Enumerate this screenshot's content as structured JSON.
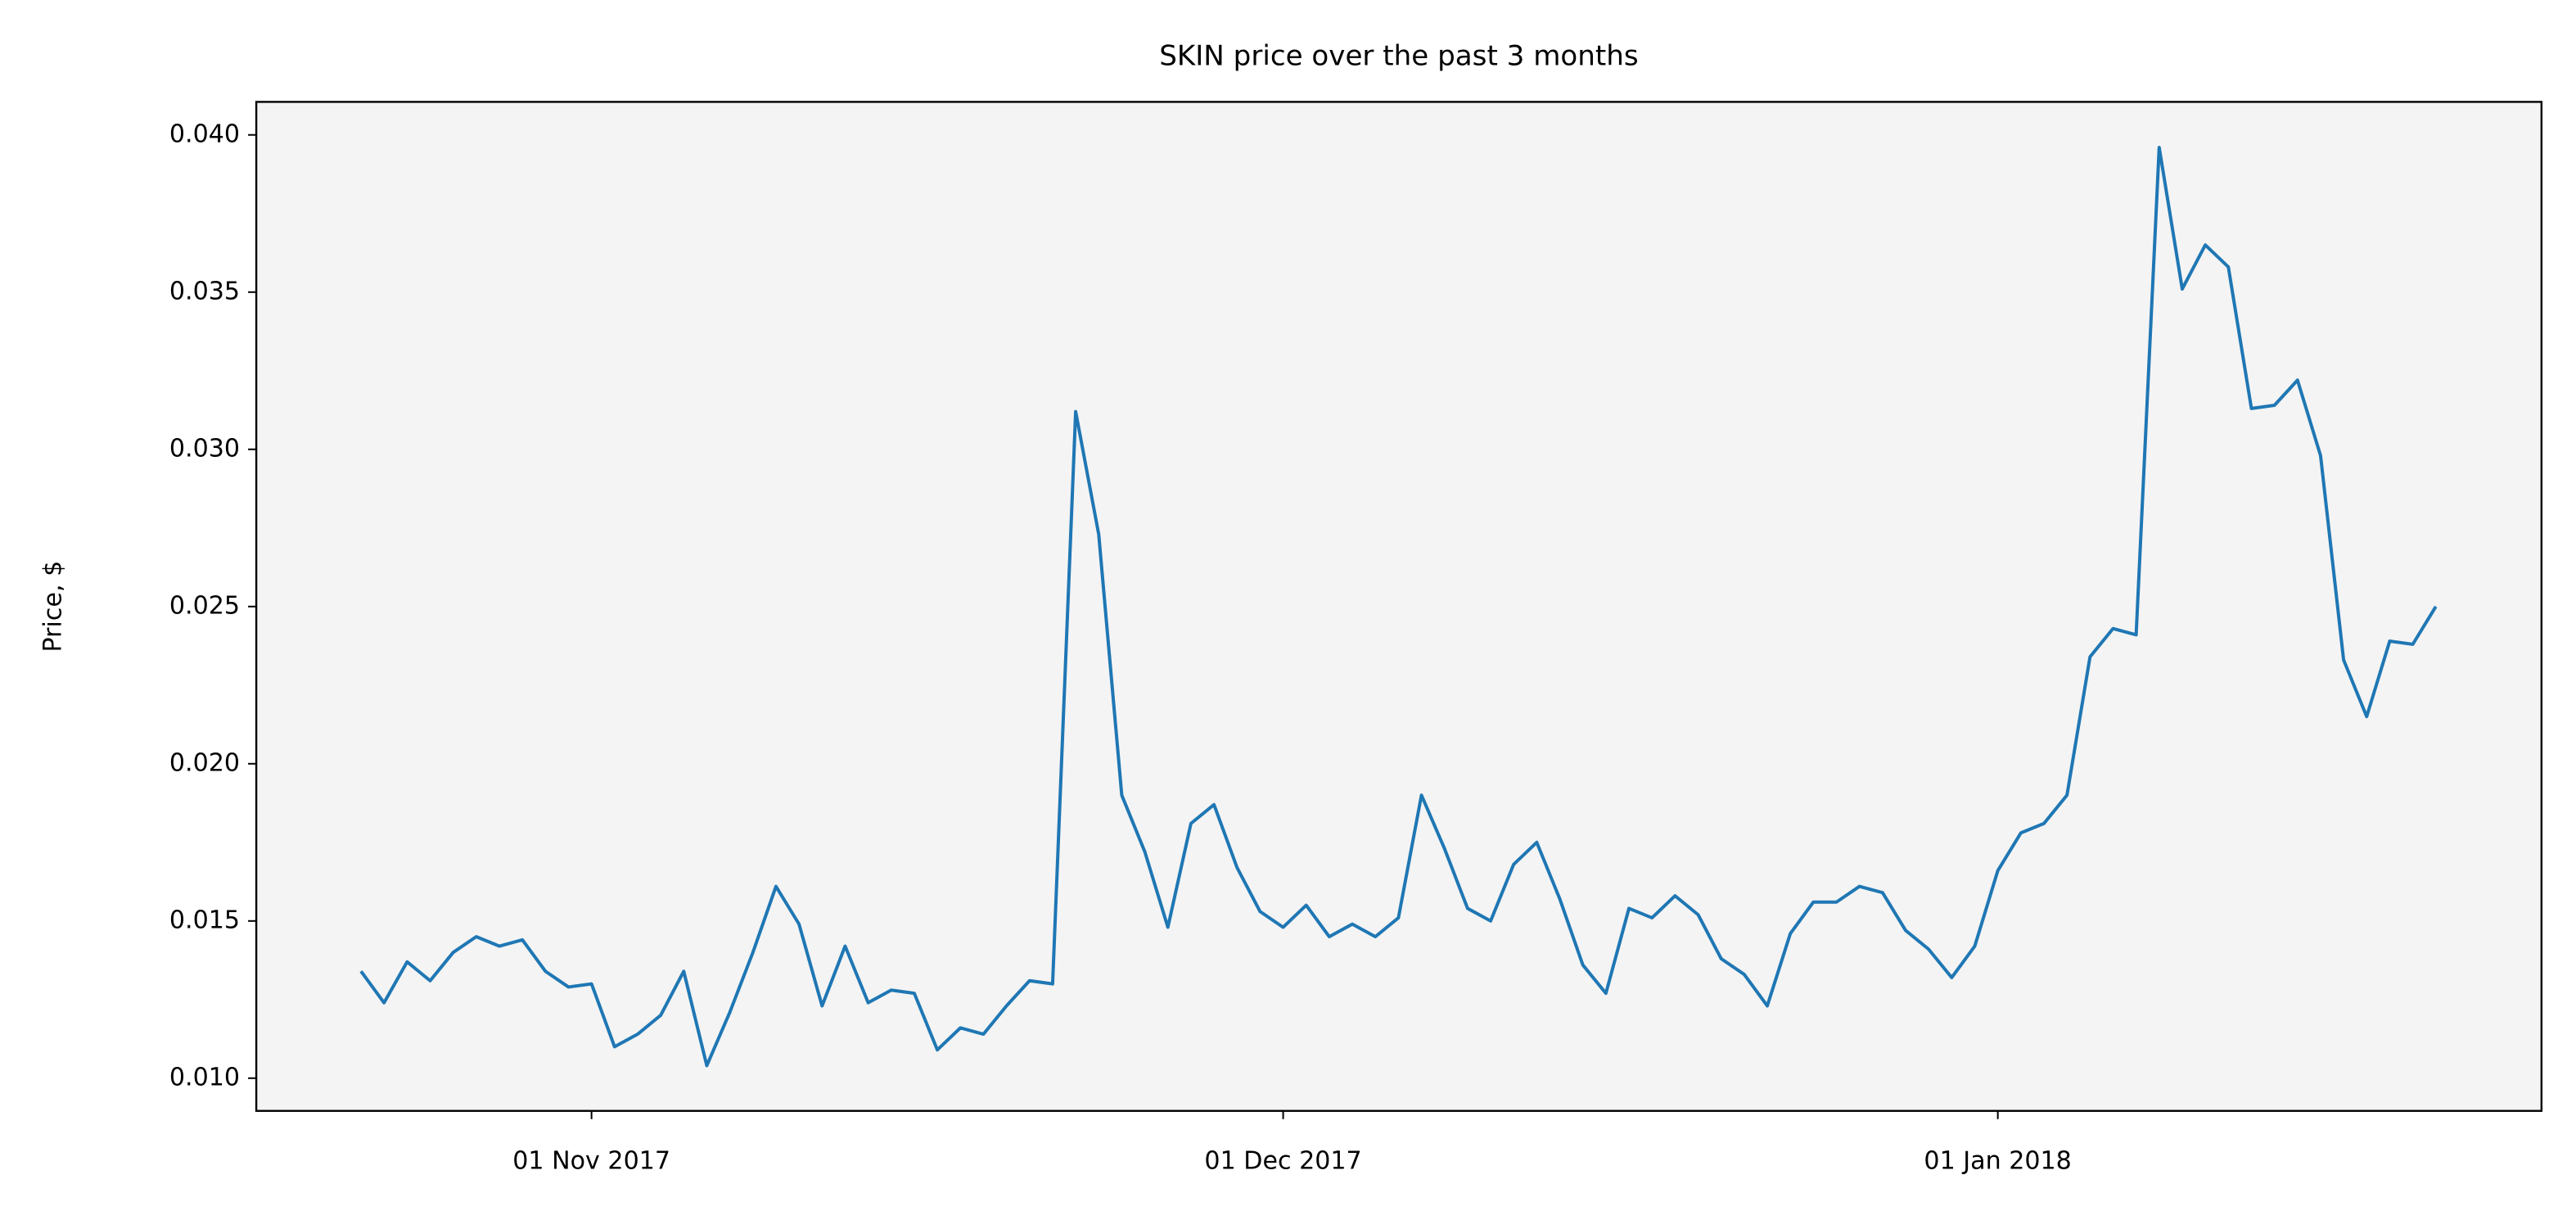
{
  "chart_data": {
    "type": "line",
    "title": "SKIN price over the past 3 months",
    "y_label": "Price, $",
    "x": [
      "2017-10-22",
      "2017-10-23",
      "2017-10-24",
      "2017-10-25",
      "2017-10-26",
      "2017-10-27",
      "2017-10-28",
      "2017-10-29",
      "2017-10-30",
      "2017-10-31",
      "2017-11-01",
      "2017-11-02",
      "2017-11-03",
      "2017-11-04",
      "2017-11-05",
      "2017-11-06",
      "2017-11-07",
      "2017-11-08",
      "2017-11-09",
      "2017-11-10",
      "2017-11-11",
      "2017-11-12",
      "2017-11-13",
      "2017-11-14",
      "2017-11-15",
      "2017-11-16",
      "2017-11-17",
      "2017-11-18",
      "2017-11-19",
      "2017-11-20",
      "2017-11-21",
      "2017-11-22",
      "2017-11-23",
      "2017-11-24",
      "2017-11-25",
      "2017-11-26",
      "2017-11-27",
      "2017-11-28",
      "2017-11-29",
      "2017-11-30",
      "2017-12-01",
      "2017-12-02",
      "2017-12-03",
      "2017-12-04",
      "2017-12-05",
      "2017-12-06",
      "2017-12-07",
      "2017-12-08",
      "2017-12-09",
      "2017-12-10",
      "2017-12-11",
      "2017-12-12",
      "2017-12-13",
      "2017-12-14",
      "2017-12-15",
      "2017-12-16",
      "2017-12-17",
      "2017-12-18",
      "2017-12-19",
      "2017-12-20",
      "2017-12-21",
      "2017-12-22",
      "2017-12-23",
      "2017-12-24",
      "2017-12-25",
      "2017-12-26",
      "2017-12-27",
      "2017-12-28",
      "2017-12-29",
      "2017-12-30",
      "2017-12-31",
      "2018-01-01",
      "2018-01-02",
      "2018-01-03",
      "2018-01-04",
      "2018-01-05",
      "2018-01-06",
      "2018-01-07",
      "2018-01-08",
      "2018-01-09",
      "2018-01-10",
      "2018-01-11",
      "2018-01-12",
      "2018-01-13",
      "2018-01-14",
      "2018-01-15",
      "2018-01-16",
      "2018-01-17",
      "2018-01-18",
      "2018-01-19",
      "2018-01-20"
    ],
    "series": [
      {
        "name": "SKIN",
        "color": "#1f77b4",
        "values": [
          0.0134,
          0.0124,
          0.0137,
          0.0131,
          0.014,
          0.0145,
          0.0142,
          0.0144,
          0.0134,
          0.0129,
          0.013,
          0.011,
          0.0114,
          0.012,
          0.0134,
          0.0104,
          0.0121,
          0.014,
          0.0161,
          0.0149,
          0.0123,
          0.0142,
          0.0124,
          0.0128,
          0.0127,
          0.0109,
          0.0116,
          0.0114,
          0.0123,
          0.0131,
          0.013,
          0.0312,
          0.0273,
          0.019,
          0.0172,
          0.0148,
          0.0181,
          0.0187,
          0.0167,
          0.0153,
          0.0148,
          0.0155,
          0.0145,
          0.0149,
          0.0145,
          0.0151,
          0.019,
          0.0173,
          0.0154,
          0.015,
          0.0168,
          0.0175,
          0.0157,
          0.0136,
          0.0127,
          0.0154,
          0.0151,
          0.0158,
          0.0152,
          0.0138,
          0.0133,
          0.0123,
          0.0146,
          0.0156,
          0.0156,
          0.0161,
          0.0159,
          0.0147,
          0.0141,
          0.0132,
          0.0142,
          0.0166,
          0.0178,
          0.0181,
          0.019,
          0.0234,
          0.0243,
          0.0241,
          0.0396,
          0.0351,
          0.0365,
          0.0358,
          0.0313,
          0.0314,
          0.0322,
          0.0298,
          0.0233,
          0.0215,
          0.0239,
          0.0238,
          0.025
        ]
      }
    ],
    "xlim": [
      "2017-10-17T11:00:00",
      "2018-01-24T14:00:00"
    ],
    "xticks": [
      {
        "value": "2017-11-01",
        "label": "01 Nov 2017"
      },
      {
        "value": "2017-12-01",
        "label": "01 Dec 2017"
      },
      {
        "value": "2018-01-01",
        "label": "01 Jan 2018"
      }
    ],
    "ylim": [
      0.00896,
      0.04105
    ],
    "yticks": [
      {
        "value": 0.01,
        "label": "0.010"
      },
      0.015,
      {
        "value": 0.02,
        "label": "0.020"
      },
      0.025,
      {
        "value": 0.03,
        "label": "0.030"
      },
      0.035,
      {
        "value": 0.04,
        "label": "0.040"
      }
    ],
    "plot_background": "#f4f4f4",
    "grid": false
  }
}
